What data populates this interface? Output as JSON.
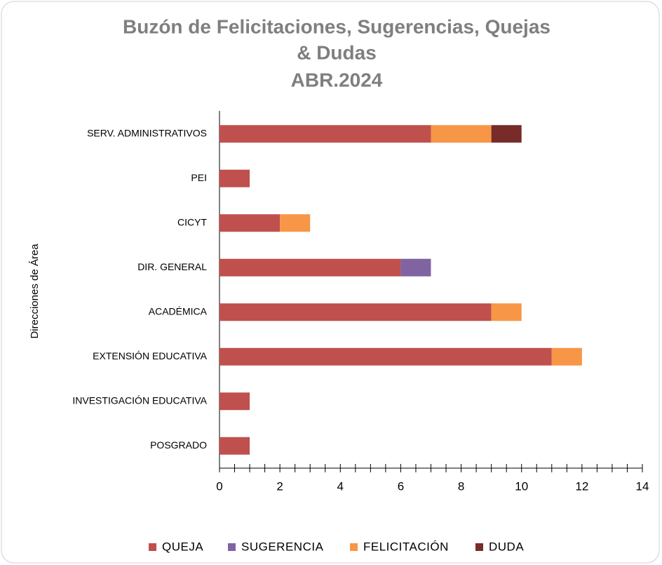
{
  "chart_data": {
    "type": "barh_stacked",
    "title": [
      "Buzón de Felicitaciones, Sugerencias, Quejas",
      "& Dudas",
      "ABR.2024"
    ],
    "y_label": "Direcciones de Área",
    "categories": [
      "SERV. ADMINISTRATIVOS",
      "PEI",
      "CICYT",
      "DIR. GENERAL",
      "ACADÉMICA",
      "EXTENSIÓN EDUCATIVA",
      "INVESTIGACIÓN EDUCATIVA",
      "POSGRADO"
    ],
    "series": [
      {
        "name": "QUEJA",
        "color": "#c0504d",
        "values": [
          7,
          1,
          2,
          6,
          9,
          11,
          1,
          1
        ]
      },
      {
        "name": "SUGERENCIA",
        "color": "#8064a2",
        "values": [
          0,
          0,
          0,
          1,
          0,
          0,
          0,
          0
        ]
      },
      {
        "name": "FELICITACIÓN",
        "color": "#f79646",
        "values": [
          2,
          0,
          1,
          0,
          1,
          1,
          0,
          0
        ]
      },
      {
        "name": "DUDA",
        "color": "#772c2a",
        "values": [
          1,
          0,
          0,
          0,
          0,
          0,
          0,
          0
        ]
      }
    ],
    "xlim": [
      0,
      14
    ],
    "xticks": [
      0,
      2,
      4,
      6,
      8,
      10,
      12,
      14
    ],
    "legend": "bottom"
  }
}
